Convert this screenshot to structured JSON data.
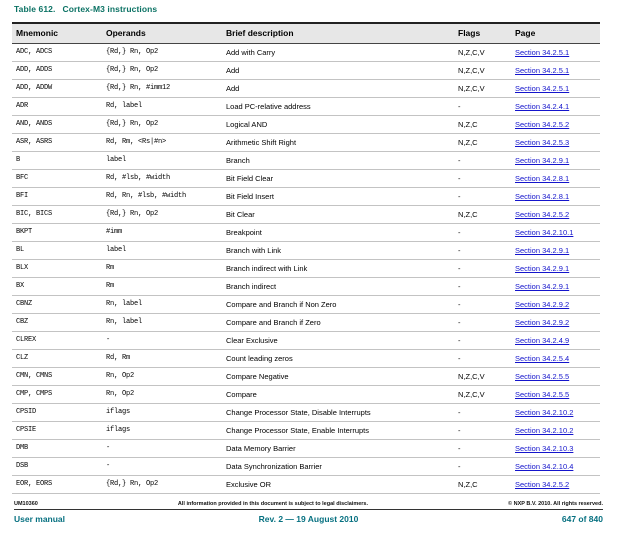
{
  "table": {
    "title_label": "Table 612.",
    "title_text": "Cortex-M3 instructions",
    "columns": [
      "Mnemonic",
      "Operands",
      "Brief description",
      "Flags",
      "Page"
    ],
    "rows": [
      {
        "mnemonic": "ADC, ADCS",
        "operands": "{Rd,} Rn, Op2",
        "description": "Add with Carry",
        "flags": "N,Z,C,V",
        "page": "Section 34.2.5.1"
      },
      {
        "mnemonic": "ADD, ADDS",
        "operands": "{Rd,} Rn, Op2",
        "description": "Add",
        "flags": "N,Z,C,V",
        "page": "Section 34.2.5.1"
      },
      {
        "mnemonic": "ADD, ADDW",
        "operands": "{Rd,} Rn, #imm12",
        "description": "Add",
        "flags": "N,Z,C,V",
        "page": "Section 34.2.5.1"
      },
      {
        "mnemonic": "ADR",
        "operands": "Rd, label",
        "description": "Load PC-relative address",
        "flags": "-",
        "page": "Section 34.2.4.1"
      },
      {
        "mnemonic": "AND, ANDS",
        "operands": "{Rd,} Rn, Op2",
        "description": "Logical AND",
        "flags": "N,Z,C",
        "page": "Section 34.2.5.2"
      },
      {
        "mnemonic": "ASR, ASRS",
        "operands": "Rd, Rm, <Rs|#n>",
        "description": "Arithmetic Shift Right",
        "flags": "N,Z,C",
        "page": "Section 34.2.5.3"
      },
      {
        "mnemonic": "B",
        "operands": "label",
        "description": "Branch",
        "flags": "-",
        "page": "Section 34.2.9.1"
      },
      {
        "mnemonic": "BFC",
        "operands": "Rd, #lsb, #width",
        "description": "Bit Field Clear",
        "flags": "-",
        "page": "Section 34.2.8.1"
      },
      {
        "mnemonic": "BFI",
        "operands": "Rd, Rn, #lsb, #width",
        "description": "Bit Field Insert",
        "flags": "-",
        "page": "Section 34.2.8.1"
      },
      {
        "mnemonic": "BIC, BICS",
        "operands": "{Rd,} Rn, Op2",
        "description": "Bit Clear",
        "flags": "N,Z,C",
        "page": "Section 34.2.5.2"
      },
      {
        "mnemonic": "BKPT",
        "operands": "#imm",
        "description": "Breakpoint",
        "flags": "-",
        "page": "Section 34.2.10.1"
      },
      {
        "mnemonic": "BL",
        "operands": "label",
        "description": "Branch with Link",
        "flags": "-",
        "page": "Section 34.2.9.1"
      },
      {
        "mnemonic": "BLX",
        "operands": "Rm",
        "description": "Branch indirect with Link",
        "flags": "-",
        "page": "Section 34.2.9.1"
      },
      {
        "mnemonic": "BX",
        "operands": "Rm",
        "description": "Branch indirect",
        "flags": "-",
        "page": "Section 34.2.9.1"
      },
      {
        "mnemonic": "CBNZ",
        "operands": "Rn, label",
        "description": "Compare and Branch if Non Zero",
        "flags": "-",
        "page": "Section 34.2.9.2"
      },
      {
        "mnemonic": "CBZ",
        "operands": "Rn, label",
        "description": "Compare and Branch if Zero",
        "flags": "-",
        "page": "Section 34.2.9.2"
      },
      {
        "mnemonic": "CLREX",
        "operands": "-",
        "description": "Clear Exclusive",
        "flags": "-",
        "page": "Section 34.2.4.9"
      },
      {
        "mnemonic": "CLZ",
        "operands": "Rd, Rm",
        "description": "Count leading zeros",
        "flags": "-",
        "page": "Section 34.2.5.4"
      },
      {
        "mnemonic": "CMN, CMNS",
        "operands": "Rn, Op2",
        "description": "Compare Negative",
        "flags": "N,Z,C,V",
        "page": "Section 34.2.5.5"
      },
      {
        "mnemonic": "CMP, CMPS",
        "operands": "Rn, Op2",
        "description": "Compare",
        "flags": "N,Z,C,V",
        "page": "Section 34.2.5.5"
      },
      {
        "mnemonic": "CPSID",
        "operands": "iflags",
        "description": "Change Processor State, Disable Interrupts",
        "flags": "-",
        "page": "Section 34.2.10.2"
      },
      {
        "mnemonic": "CPSIE",
        "operands": "iflags",
        "description": "Change Processor State, Enable Interrupts",
        "flags": "-",
        "page": "Section 34.2.10.2"
      },
      {
        "mnemonic": "DMB",
        "operands": "-",
        "description": "Data Memory Barrier",
        "flags": "-",
        "page": "Section 34.2.10.3"
      },
      {
        "mnemonic": "DSB",
        "operands": "-",
        "description": "Data Synchronization Barrier",
        "flags": "-",
        "page": "Section 34.2.10.4"
      },
      {
        "mnemonic": "EOR, EORS",
        "operands": "{Rd,} Rn, Op2",
        "description": "Exclusive OR",
        "flags": "N,Z,C",
        "page": "Section 34.2.5.2"
      }
    ]
  },
  "footer": {
    "doc_id": "UM10360",
    "disclaimer": "All information provided in this document is subject to legal disclaimers.",
    "copyright": "© NXP B.V. 2010. All rights reserved.",
    "doc_type": "User manual",
    "revision": "Rev. 2 — 19 August 2010",
    "page_number": "647 of 840"
  },
  "colors": {
    "title_teal": "#0b7264",
    "footer_teal": "#067080",
    "link_blue": "#1414cc",
    "header_bg": "#e7e7e7"
  }
}
